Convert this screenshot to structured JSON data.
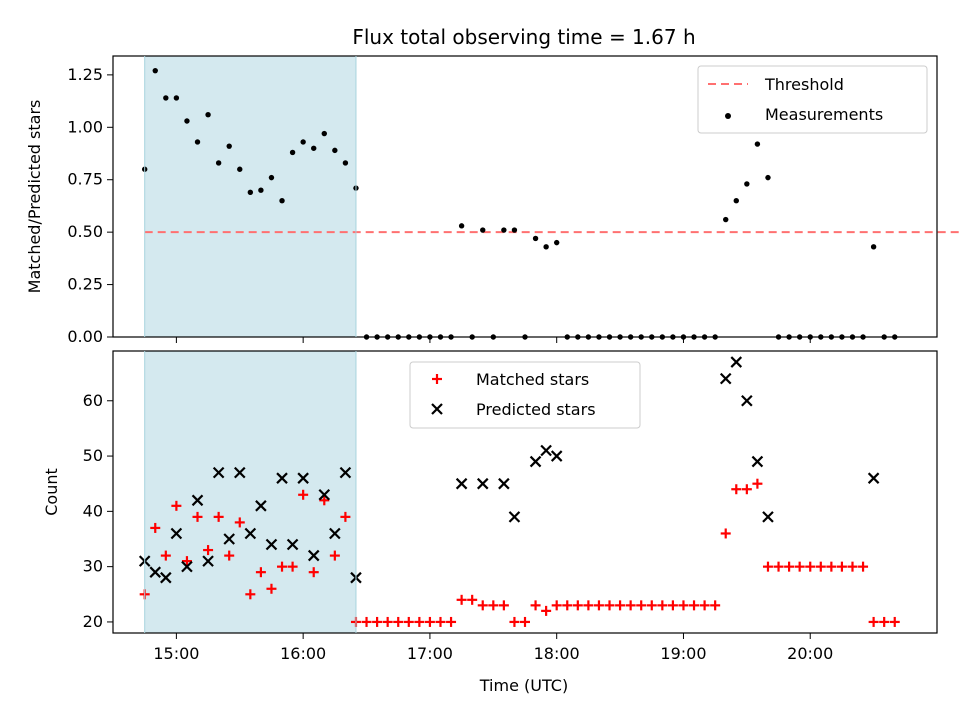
{
  "title": "Flux total observing time = 1.67 h",
  "chart_data": [
    {
      "type": "scatter",
      "ylabel": "Matched/Predicted stars",
      "xlim": [
        "14:30",
        "21:00"
      ],
      "ylim": [
        0,
        1.34
      ],
      "yticks": [
        "0.00",
        "0.25",
        "0.50",
        "0.75",
        "1.00",
        "1.25"
      ],
      "threshold": 0.5,
      "threshold_range": [
        "14:45",
        "21:20"
      ],
      "shaded_range": [
        "14:45",
        "16:25"
      ],
      "legend": {
        "position": "top-right",
        "threshold_label": "Threshold",
        "measurements_label": "Measurements"
      },
      "colors": {
        "threshold": "#ff7070",
        "points": "#000000",
        "shade": "#d4e9ef"
      },
      "points": [
        [
          "14:45",
          0.8
        ],
        [
          "14:50",
          1.27
        ],
        [
          "14:55",
          1.14
        ],
        [
          "15:00",
          1.14
        ],
        [
          "15:05",
          1.03
        ],
        [
          "15:10",
          0.93
        ],
        [
          "15:15",
          1.06
        ],
        [
          "15:20",
          0.83
        ],
        [
          "15:25",
          0.91
        ],
        [
          "15:30",
          0.8
        ],
        [
          "15:35",
          0.69
        ],
        [
          "15:40",
          0.7
        ],
        [
          "15:45",
          0.76
        ],
        [
          "15:50",
          0.65
        ],
        [
          "15:55",
          0.88
        ],
        [
          "16:00",
          0.93
        ],
        [
          "16:05",
          0.9
        ],
        [
          "16:10",
          0.97
        ],
        [
          "16:15",
          0.89
        ],
        [
          "16:20",
          0.83
        ],
        [
          "16:25",
          0.71
        ],
        [
          "16:30",
          0.0
        ],
        [
          "16:35",
          0.0
        ],
        [
          "16:40",
          0.0
        ],
        [
          "16:45",
          0.0
        ],
        [
          "16:50",
          0.0
        ],
        [
          "16:55",
          0.0
        ],
        [
          "17:00",
          0.0
        ],
        [
          "17:05",
          0.0
        ],
        [
          "17:10",
          0.0
        ],
        [
          "17:15",
          0.53
        ],
        [
          "17:20",
          0.0
        ],
        [
          "17:25",
          0.51
        ],
        [
          "17:30",
          0.0
        ],
        [
          "17:35",
          0.51
        ],
        [
          "17:40",
          0.51
        ],
        [
          "17:45",
          0.0
        ],
        [
          "17:50",
          0.47
        ],
        [
          "17:55",
          0.43
        ],
        [
          "18:00",
          0.45
        ],
        [
          "18:05",
          0.0
        ],
        [
          "18:10",
          0.0
        ],
        [
          "18:15",
          0.0
        ],
        [
          "18:20",
          0.0
        ],
        [
          "18:25",
          0.0
        ],
        [
          "18:30",
          0.0
        ],
        [
          "18:35",
          0.0
        ],
        [
          "18:40",
          0.0
        ],
        [
          "18:45",
          0.0
        ],
        [
          "18:50",
          0.0
        ],
        [
          "18:55",
          0.0
        ],
        [
          "19:00",
          0.0
        ],
        [
          "19:05",
          0.0
        ],
        [
          "19:10",
          0.0
        ],
        [
          "19:15",
          0.0
        ],
        [
          "19:20",
          0.56
        ],
        [
          "19:25",
          0.65
        ],
        [
          "19:30",
          0.73
        ],
        [
          "19:35",
          0.92
        ],
        [
          "19:40",
          0.76
        ],
        [
          "19:45",
          0.0
        ],
        [
          "19:50",
          0.0
        ],
        [
          "19:55",
          0.0
        ],
        [
          "20:00",
          0.0
        ],
        [
          "20:05",
          0.0
        ],
        [
          "20:10",
          0.0
        ],
        [
          "20:15",
          0.0
        ],
        [
          "20:20",
          0.0
        ],
        [
          "20:25",
          0.0
        ],
        [
          "20:30",
          0.43
        ],
        [
          "20:35",
          0.0
        ],
        [
          "20:40",
          0.0
        ]
      ]
    },
    {
      "type": "scatter",
      "ylabel": "Count",
      "xlabel": "Time (UTC)",
      "xlim": [
        "14:30",
        "21:00"
      ],
      "ylim": [
        18,
        69
      ],
      "yticks": [
        "20",
        "30",
        "40",
        "50",
        "60"
      ],
      "xticks": [
        "15:00",
        "16:00",
        "17:00",
        "18:00",
        "19:00",
        "20:00"
      ],
      "shaded_range": [
        "14:45",
        "16:25"
      ],
      "legend": {
        "position": "top-center",
        "matched_label": "Matched stars",
        "predicted_label": "Predicted stars"
      },
      "colors": {
        "matched": "#ff0000",
        "predicted": "#000000",
        "shade": "#d4e9ef"
      },
      "matched": [
        [
          "14:45",
          25
        ],
        [
          "14:50",
          37
        ],
        [
          "14:55",
          32
        ],
        [
          "15:00",
          41
        ],
        [
          "15:05",
          31
        ],
        [
          "15:10",
          39
        ],
        [
          "15:15",
          33
        ],
        [
          "15:20",
          39
        ],
        [
          "15:25",
          32
        ],
        [
          "15:30",
          38
        ],
        [
          "15:35",
          25
        ],
        [
          "15:40",
          29
        ],
        [
          "15:45",
          26
        ],
        [
          "15:50",
          30
        ],
        [
          "15:55",
          30
        ],
        [
          "16:00",
          43
        ],
        [
          "16:05",
          29
        ],
        [
          "16:10",
          42
        ],
        [
          "16:15",
          32
        ],
        [
          "16:20",
          39
        ],
        [
          "16:25",
          20
        ],
        [
          "16:30",
          20
        ],
        [
          "16:35",
          20
        ],
        [
          "16:40",
          20
        ],
        [
          "16:45",
          20
        ],
        [
          "16:50",
          20
        ],
        [
          "16:55",
          20
        ],
        [
          "17:00",
          20
        ],
        [
          "17:05",
          20
        ],
        [
          "17:10",
          20
        ],
        [
          "17:15",
          24
        ],
        [
          "17:20",
          24
        ],
        [
          "17:25",
          23
        ],
        [
          "17:30",
          23
        ],
        [
          "17:35",
          23
        ],
        [
          "17:40",
          20
        ],
        [
          "17:45",
          20
        ],
        [
          "17:50",
          23
        ],
        [
          "17:55",
          22
        ],
        [
          "18:00",
          23
        ],
        [
          "18:05",
          23
        ],
        [
          "18:10",
          23
        ],
        [
          "18:15",
          23
        ],
        [
          "18:20",
          23
        ],
        [
          "18:25",
          23
        ],
        [
          "18:30",
          23
        ],
        [
          "18:35",
          23
        ],
        [
          "18:40",
          23
        ],
        [
          "18:45",
          23
        ],
        [
          "18:50",
          23
        ],
        [
          "18:55",
          23
        ],
        [
          "19:00",
          23
        ],
        [
          "19:05",
          23
        ],
        [
          "19:10",
          23
        ],
        [
          "19:15",
          23
        ],
        [
          "19:20",
          36
        ],
        [
          "19:25",
          44
        ],
        [
          "19:30",
          44
        ],
        [
          "19:35",
          45
        ],
        [
          "19:40",
          30
        ],
        [
          "19:45",
          30
        ],
        [
          "19:50",
          30
        ],
        [
          "19:55",
          30
        ],
        [
          "20:00",
          30
        ],
        [
          "20:05",
          30
        ],
        [
          "20:10",
          30
        ],
        [
          "20:15",
          30
        ],
        [
          "20:20",
          30
        ],
        [
          "20:25",
          30
        ],
        [
          "20:30",
          20
        ],
        [
          "20:35",
          20
        ],
        [
          "20:40",
          20
        ]
      ],
      "predicted": [
        [
          "14:45",
          31
        ],
        [
          "14:50",
          29
        ],
        [
          "14:55",
          28
        ],
        [
          "15:00",
          36
        ],
        [
          "15:05",
          30
        ],
        [
          "15:10",
          42
        ],
        [
          "15:15",
          31
        ],
        [
          "15:20",
          47
        ],
        [
          "15:25",
          35
        ],
        [
          "15:30",
          47
        ],
        [
          "15:35",
          36
        ],
        [
          "15:40",
          41
        ],
        [
          "15:45",
          34
        ],
        [
          "15:50",
          46
        ],
        [
          "15:55",
          34
        ],
        [
          "16:00",
          46
        ],
        [
          "16:05",
          32
        ],
        [
          "16:10",
          43
        ],
        [
          "16:15",
          36
        ],
        [
          "16:20",
          47
        ],
        [
          "16:25",
          28
        ],
        [
          "17:15",
          45
        ],
        [
          "17:25",
          45
        ],
        [
          "17:35",
          45
        ],
        [
          "17:40",
          39
        ],
        [
          "17:50",
          49
        ],
        [
          "17:55",
          51
        ],
        [
          "18:00",
          50
        ],
        [
          "19:20",
          64
        ],
        [
          "19:25",
          67
        ],
        [
          "19:30",
          60
        ],
        [
          "19:35",
          49
        ],
        [
          "19:40",
          39
        ],
        [
          "20:30",
          46
        ]
      ]
    }
  ]
}
